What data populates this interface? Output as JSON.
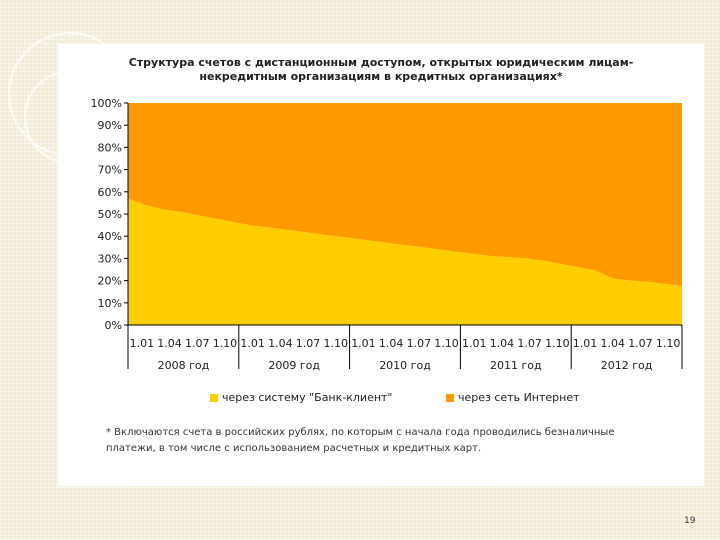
{
  "title_line1": "Структура счетов с дистанционным доступом, открытых юридическим лицам-",
  "title_line2": "некредитным организациям в кредитных организациях*",
  "footnote_line1": "* Включаются счета в российских рублях, по которым с начала года проводились безналичные",
  "footnote_line2": "платежи, в том числе с использованием расчетных и кредитных карт.",
  "slide_number": "19",
  "colors": {
    "bank_client": "#ffcc00",
    "internet": "#ff9900",
    "background": "#f3ebd4"
  },
  "chart_data": {
    "type": "area",
    "stacked": "percent",
    "ylim": [
      0,
      100
    ],
    "y_ticks": [
      "0%",
      "10%",
      "20%",
      "30%",
      "40%",
      "50%",
      "60%",
      "70%",
      "80%",
      "90%",
      "100%"
    ],
    "x_ticks": [
      "1.01",
      "1.04",
      "1.07",
      "1.10",
      "1.01",
      "1.04",
      "1.07",
      "1.10",
      "1.01",
      "1.04",
      "1.07",
      "1.10",
      "1.01",
      "1.04",
      "1.07",
      "1.10",
      "1.01",
      "1.04",
      "1.07",
      "1.10"
    ],
    "year_labels": [
      "2008 год",
      "2009 год",
      "2010 год",
      "2011 год",
      "2012 год"
    ],
    "legend_position": "bottom",
    "series": [
      {
        "name": "через систему \"Банк-клиент\"",
        "color": "#ffcc00",
        "values": [
          57,
          54,
          52,
          51,
          49.5,
          48,
          46.5,
          45,
          44,
          43,
          42,
          41,
          40,
          39,
          38,
          37,
          36,
          35,
          34,
          33,
          32,
          31,
          30.5,
          30,
          29,
          27.5,
          26,
          24.5,
          21,
          20,
          19.5,
          18.5,
          17.5
        ]
      },
      {
        "name": "через сеть Интернет",
        "color": "#ff9900",
        "values": [
          43,
          46,
          48,
          49,
          50.5,
          52,
          53.5,
          55,
          56,
          57,
          58,
          59,
          60,
          61,
          62,
          63,
          64,
          65,
          66,
          67,
          68,
          69,
          69.5,
          70,
          71,
          72.5,
          74,
          75.5,
          79,
          80,
          80.5,
          81.5,
          82.5
        ]
      }
    ]
  }
}
